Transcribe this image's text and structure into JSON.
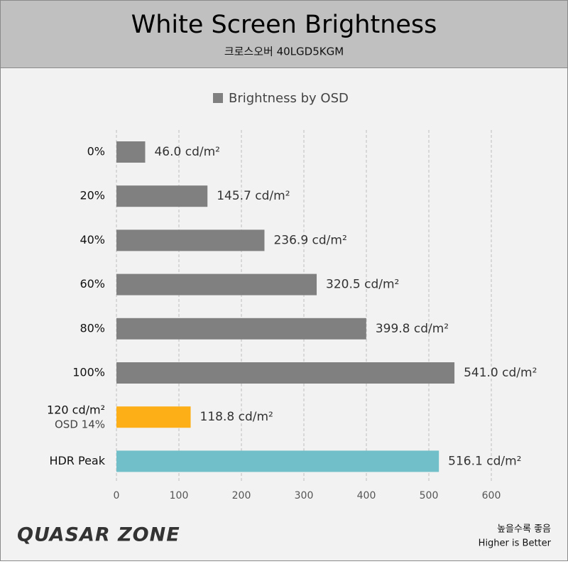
{
  "chart_data": {
    "type": "bar",
    "orientation": "horizontal",
    "title": "White Screen Brightness",
    "subtitle": "크로스오버 40LGD5KGM",
    "legend": "Brightness by OSD",
    "legend_color": "#808080",
    "categories": [
      "0%",
      "20%",
      "40%",
      "60%",
      "80%",
      "100%",
      "120 cd/m²",
      "HDR Peak"
    ],
    "category_notes": [
      null,
      null,
      null,
      null,
      null,
      null,
      "OSD 14%",
      null
    ],
    "values": [
      46.0,
      145.7,
      236.9,
      320.5,
      399.8,
      541.0,
      118.8,
      516.1
    ],
    "value_labels": [
      "46.0 cd/m²",
      "145.7 cd/m²",
      "236.9 cd/m²",
      "320.5 cd/m²",
      "399.8 cd/m²",
      "541.0 cd/m²",
      "118.8 cd/m²",
      "516.1 cd/m²"
    ],
    "colors": [
      "#808080",
      "#808080",
      "#808080",
      "#808080",
      "#808080",
      "#808080",
      "#fcaf17",
      "#71bfc8"
    ],
    "xlim": [
      0,
      600
    ],
    "xticks": [
      0,
      100,
      200,
      300,
      400,
      500,
      600
    ],
    "grid": true
  },
  "footer": {
    "logo": "QUASAR ZONE",
    "note": [
      "높을수록 좋음",
      "Higher is Better"
    ]
  }
}
